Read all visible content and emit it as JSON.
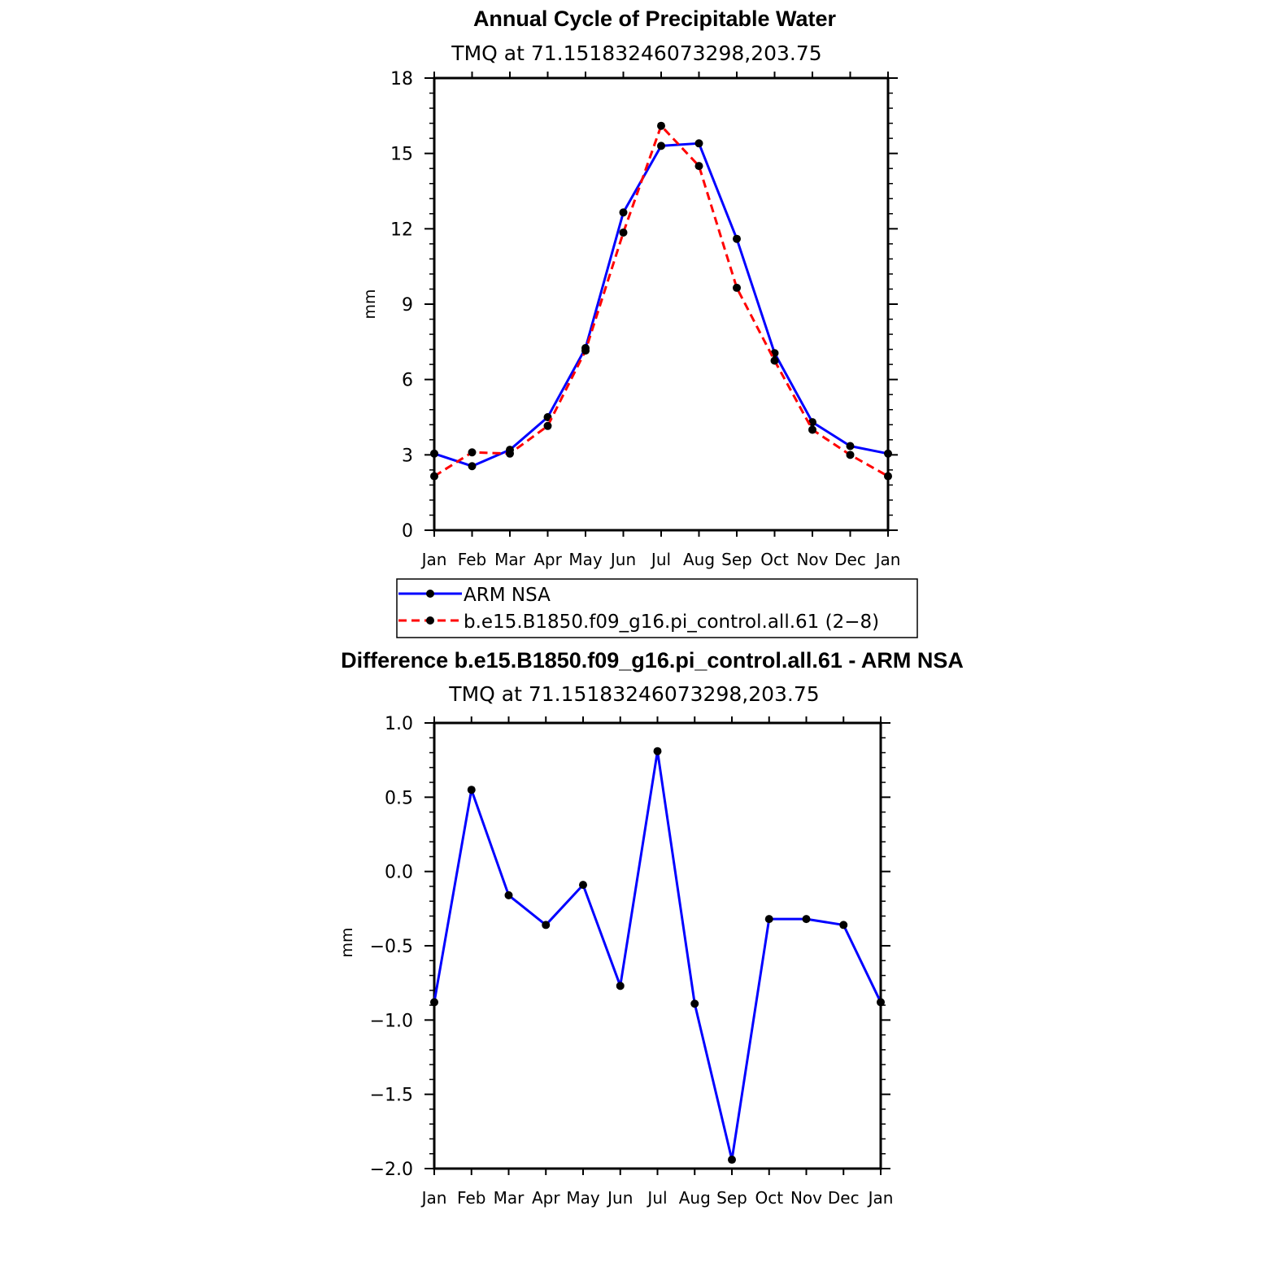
{
  "chart_data": [
    {
      "type": "line",
      "title": "Annual Cycle of Precipitable Water",
      "subtitle": "TMQ  at  71.15183246073298,203.75",
      "xlabel": "",
      "ylabel": "mm",
      "categories": [
        "Jan",
        "Feb",
        "Mar",
        "Apr",
        "May",
        "Jun",
        "Jul",
        "Aug",
        "Sep",
        "Oct",
        "Nov",
        "Dec",
        "Jan"
      ],
      "ylim": [
        0,
        18
      ],
      "yticks": [
        0,
        3,
        6,
        9,
        12,
        15,
        18
      ],
      "ytick_labels": [
        "0",
        "3",
        "6",
        "9",
        "12",
        "15",
        "18"
      ],
      "series": [
        {
          "name": "ARM  NSA",
          "color": "#0000ff",
          "dash": "solid",
          "values": [
            3.05,
            2.55,
            3.2,
            4.5,
            7.25,
            12.65,
            15.3,
            15.4,
            11.6,
            7.05,
            4.3,
            3.35,
            3.05
          ]
        },
        {
          "name": "b.e15.B1850.f09_g16.pi_control.all.61  (2−8)",
          "color": "#ff0000",
          "dash": "dashed",
          "values": [
            2.15,
            3.1,
            3.05,
            4.15,
            7.15,
            11.85,
            16.1,
            14.5,
            9.65,
            6.75,
            4.0,
            3.0,
            2.15
          ]
        }
      ],
      "legend": {
        "position": "bottom"
      }
    },
    {
      "type": "line",
      "title": "Difference b.e15.B1850.f09_g16.pi_control.all.61 - ARM NSA",
      "subtitle": "TMQ  at  71.15183246073298,203.75",
      "xlabel": "",
      "ylabel": "mm",
      "categories": [
        "Jan",
        "Feb",
        "Mar",
        "Apr",
        "May",
        "Jun",
        "Jul",
        "Aug",
        "Sep",
        "Oct",
        "Nov",
        "Dec",
        "Jan"
      ],
      "ylim": [
        -2.0,
        1.0
      ],
      "yticks": [
        -2.0,
        -1.5,
        -1.0,
        -0.5,
        0.0,
        0.5,
        1.0
      ],
      "ytick_labels": [
        "−2.0",
        "−1.5",
        "−1.0",
        "−0.5",
        "0.0",
        "0.5",
        "1.0"
      ],
      "series": [
        {
          "name": "Difference",
          "color": "#0000ff",
          "dash": "solid",
          "values": [
            -0.88,
            0.55,
            -0.16,
            -0.36,
            -0.09,
            -0.77,
            0.81,
            -0.89,
            -1.94,
            -0.32,
            -0.32,
            -0.36,
            -0.88
          ]
        }
      ]
    }
  ]
}
